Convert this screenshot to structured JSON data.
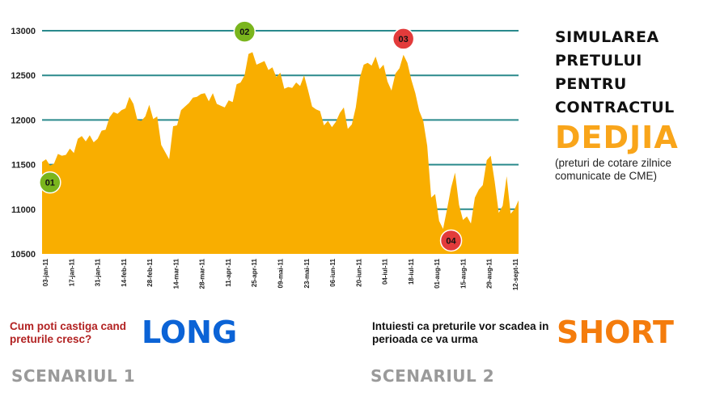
{
  "title": {
    "lines": [
      "SIMULAREA",
      "PRETULUI",
      "PENTRU",
      "CONTRACTUL"
    ],
    "brand": "DEDJIA",
    "note": "(preturi de cotare zilnice comunicate de CME)"
  },
  "scenario1": {
    "question": "Cum poti castiga cand preturile cresc?",
    "keyword": "LONG",
    "label": "SCENARIUL 1"
  },
  "scenario2": {
    "question": "Intuiesti ca preturile vor scadea in perioada ce va urma",
    "keyword": "SHORT",
    "label": "SCENARIUL 2"
  },
  "colors": {
    "area": "#f9ae00",
    "gridline": "#2a8a8c",
    "marker_green": "#7ab51d",
    "marker_red": "#e23b3b",
    "long": "#0b63d6",
    "short": "#f47c0c"
  },
  "chart_data": {
    "type": "area",
    "ylim": [
      10500,
      13000
    ],
    "yticks": [
      10500,
      11000,
      11500,
      12000,
      12500,
      13000
    ],
    "xtick_labels": [
      "03-jan-11",
      "17-jan-11",
      "31-jan-11",
      "14-feb-11",
      "28-feb-11",
      "14-mar-11",
      "28-mar-11",
      "11-apr-11",
      "25-apr-11",
      "09-mai-11",
      "23-mai-11",
      "06-iun-11",
      "20-iun-11",
      "04-iul-11",
      "18-iul-11",
      "01-aug-11",
      "15-aug-11",
      "29-aug-11",
      "12-sept-11"
    ],
    "grid": "horizontal",
    "legend": "none",
    "values": [
      11530,
      11560,
      11490,
      11510,
      11620,
      11600,
      11610,
      11680,
      11630,
      11790,
      11820,
      11760,
      11830,
      11750,
      11790,
      11880,
      11890,
      12030,
      12090,
      12070,
      12110,
      12130,
      12260,
      12180,
      12000,
      11990,
      12040,
      12170,
      12010,
      12040,
      11720,
      11640,
      11560,
      11930,
      11940,
      12110,
      12150,
      12190,
      12250,
      12260,
      12290,
      12300,
      12210,
      12300,
      12180,
      12160,
      12140,
      12220,
      12200,
      12400,
      12420,
      12500,
      12740,
      12760,
      12620,
      12640,
      12660,
      12560,
      12590,
      12480,
      12530,
      12350,
      12370,
      12360,
      12420,
      12380,
      12500,
      12330,
      12150,
      12120,
      12100,
      11940,
      11990,
      11920,
      11980,
      12080,
      12140,
      11900,
      11950,
      12140,
      12470,
      12620,
      12640,
      12610,
      12710,
      12570,
      12620,
      12430,
      12330,
      12520,
      12580,
      12730,
      12640,
      12450,
      12300,
      12100,
      11990,
      11710,
      11130,
      11170,
      10870,
      10780,
      11000,
      11240,
      11410,
      11050,
      10880,
      10920,
      10840,
      11130,
      11220,
      11270,
      11550,
      11600,
      11310,
      10960,
      11040,
      11370,
      10950,
      11000,
      11100
    ],
    "markers": [
      {
        "label": "01",
        "index": 2,
        "value": 11300,
        "color": "green"
      },
      {
        "label": "02",
        "index": 51,
        "value": 12990,
        "color": "green"
      },
      {
        "label": "03",
        "index": 91,
        "value": 12910,
        "color": "red"
      },
      {
        "label": "04",
        "index": 103,
        "value": 10650,
        "color": "red"
      }
    ]
  }
}
